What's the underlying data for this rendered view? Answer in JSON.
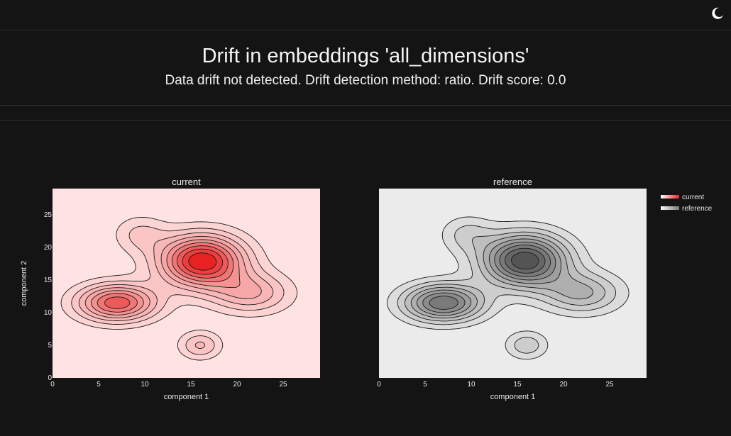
{
  "header": {
    "title": "Drift in embeddings 'all_dimensions'",
    "subtitle": "Data drift not detected. Drift detection method: ratio. Drift score: 0.0"
  },
  "icons": {
    "theme_toggle": "moon-icon"
  },
  "chart_data": [
    {
      "type": "contour",
      "title": "current",
      "xlabel": "component 1",
      "ylabel": "component 2",
      "xlim": [
        0,
        29
      ],
      "ylim": [
        0,
        29
      ],
      "xticks": [
        "0",
        "5",
        "10",
        "15",
        "20",
        "25"
      ],
      "yticks": [
        "0",
        "5",
        "10",
        "15",
        "20",
        "25"
      ],
      "colorscale": [
        "#ffe3e3",
        "#f5a0a0",
        "#e82222"
      ],
      "peaks": [
        {
          "x": 16.2,
          "y": 17.9,
          "sx": 3.2,
          "sy": 2.8,
          "w": 1.0
        },
        {
          "x": 7.0,
          "y": 11.5,
          "sx": 3.0,
          "sy": 2.0,
          "w": 0.78
        },
        {
          "x": 21.5,
          "y": 13.0,
          "sx": 3.0,
          "sy": 2.2,
          "w": 0.4
        },
        {
          "x": 16.0,
          "y": 5.0,
          "sx": 1.6,
          "sy": 1.5,
          "w": 0.32
        },
        {
          "x": 9.5,
          "y": 22.0,
          "sx": 2.0,
          "sy": 2.0,
          "w": 0.22
        }
      ]
    },
    {
      "type": "contour",
      "title": "reference",
      "xlabel": "component 1",
      "ylabel": "",
      "xlim": [
        0,
        29
      ],
      "ylim": [
        0,
        29
      ],
      "xticks": [
        "0",
        "5",
        "10",
        "15",
        "20",
        "25"
      ],
      "yticks": [],
      "colorscale": [
        "#ebebeb",
        "#a8a8a8",
        "#555555"
      ],
      "peaks": [
        {
          "x": 15.8,
          "y": 18.0,
          "sx": 3.2,
          "sy": 2.8,
          "w": 1.0
        },
        {
          "x": 7.0,
          "y": 11.5,
          "sx": 3.0,
          "sy": 2.0,
          "w": 0.8
        },
        {
          "x": 22.0,
          "y": 13.0,
          "sx": 3.0,
          "sy": 2.2,
          "w": 0.42
        },
        {
          "x": 16.0,
          "y": 5.0,
          "sx": 1.6,
          "sy": 1.5,
          "w": 0.28
        },
        {
          "x": 9.5,
          "y": 22.0,
          "sx": 2.0,
          "sy": 2.0,
          "w": 0.22
        }
      ]
    }
  ],
  "legend": {
    "position": "top-right",
    "items": [
      {
        "label": "current",
        "color": "#e82222"
      },
      {
        "label": "reference",
        "color": "#777777"
      }
    ]
  }
}
